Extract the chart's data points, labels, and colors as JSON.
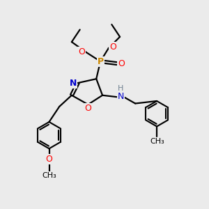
{
  "bg_color": "#ebebeb",
  "atom_colors": {
    "C": "#000000",
    "H": "#708090",
    "N": "#0000cd",
    "O": "#ff0000",
    "P": "#cc8800"
  },
  "bond_color": "#000000",
  "bond_width": 1.6,
  "figsize": [
    3.0,
    3.0
  ],
  "dpi": 100,
  "xlim": [
    0,
    10
  ],
  "ylim": [
    0,
    10
  ]
}
